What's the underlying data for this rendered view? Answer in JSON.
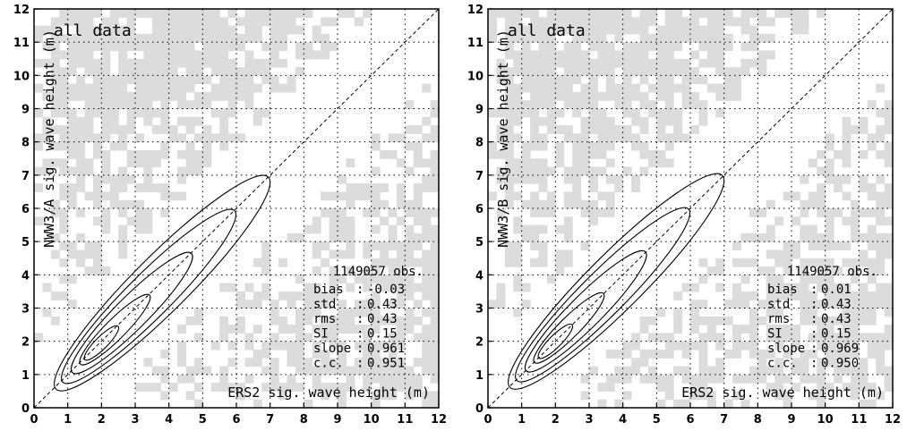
{
  "chart_data": [
    {
      "type": "contour",
      "annotation": "all data",
      "xlabel": "ERS2 sig. wave height (m)",
      "ylabel": "NWW3/A sig. wave height (m)",
      "xlim": [
        0,
        12
      ],
      "ylim": [
        0,
        12
      ],
      "x_ticks": [
        "0",
        "1",
        "2",
        "3",
        "4",
        "5",
        "6",
        "7",
        "8",
        "9",
        "10",
        "11",
        "12"
      ],
      "y_ticks": [
        "0",
        "1",
        "2",
        "3",
        "4",
        "5",
        "6",
        "7",
        "8",
        "9",
        "10",
        "11",
        "12"
      ],
      "grid": true,
      "reference_line": "y = x",
      "stats": {
        "obs": "1149057 obs.",
        "rows": [
          {
            "label": "bias",
            "value": "-0.03"
          },
          {
            "label": "std",
            "value": "0.43"
          },
          {
            "label": "rms",
            "value": "0.43"
          },
          {
            "label": "SI",
            "value": "0.15"
          },
          {
            "label": "slope",
            "value": "0.961"
          },
          {
            "label": "c.c.",
            "value": "0.951"
          }
        ]
      },
      "contours": [
        {
          "center": [
            2.0,
            1.95
          ],
          "major_half": 0.7,
          "minor_half": 0.18
        },
        {
          "center": [
            2.4,
            2.35
          ],
          "major_half": 1.45,
          "minor_half": 0.3
        },
        {
          "center": [
            2.9,
            2.85
          ],
          "major_half": 2.5,
          "minor_half": 0.48
        },
        {
          "center": [
            3.4,
            3.35
          ],
          "major_half": 3.6,
          "minor_half": 0.65
        },
        {
          "center": [
            3.8,
            3.75
          ],
          "major_half": 4.45,
          "minor_half": 0.82
        }
      ]
    },
    {
      "type": "contour",
      "annotation": "all data",
      "xlabel": "ERS2 sig. wave height (m)",
      "ylabel": "NWW3/B sig. wave height (m)",
      "xlim": [
        0,
        12
      ],
      "ylim": [
        0,
        12
      ],
      "x_ticks": [
        "0",
        "1",
        "2",
        "3",
        "4",
        "5",
        "6",
        "7",
        "8",
        "9",
        "10",
        "11",
        "12"
      ],
      "y_ticks": [
        "0",
        "1",
        "2",
        "3",
        "4",
        "5",
        "6",
        "7",
        "8",
        "9",
        "10",
        "11",
        "12"
      ],
      "grid": true,
      "reference_line": "y = x",
      "stats": {
        "obs": "1149057 obs.",
        "rows": [
          {
            "label": "bias",
            "value": "0.01"
          },
          {
            "label": "std",
            "value": "0.43"
          },
          {
            "label": "rms",
            "value": "0.43"
          },
          {
            "label": "SI",
            "value": "0.15"
          },
          {
            "label": "slope",
            "value": "0.969"
          },
          {
            "label": "c.c.",
            "value": "0.950"
          }
        ]
      },
      "contours": [
        {
          "center": [
            2.0,
            2.0
          ],
          "major_half": 0.7,
          "minor_half": 0.18
        },
        {
          "center": [
            2.4,
            2.4
          ],
          "major_half": 1.45,
          "minor_half": 0.3
        },
        {
          "center": [
            2.9,
            2.9
          ],
          "major_half": 2.5,
          "minor_half": 0.48
        },
        {
          "center": [
            3.4,
            3.4
          ],
          "major_half": 3.6,
          "minor_half": 0.65
        },
        {
          "center": [
            3.8,
            3.8
          ],
          "major_half": 4.45,
          "minor_half": 0.82
        }
      ]
    }
  ]
}
